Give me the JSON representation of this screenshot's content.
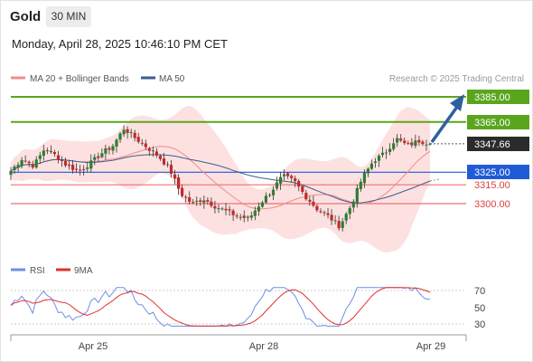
{
  "header": {
    "instrument": "Gold",
    "timeframe": "30 MIN"
  },
  "timestamp": "Monday, April 28, 2025 10:46:10 PM CET",
  "legend": {
    "ma20_bb": "MA 20 + Bollinger Bands",
    "ma50": "MA 50",
    "rsi": "RSI",
    "rsi_ma": "9MA"
  },
  "source": "Research © 2025 Trading Central",
  "colors": {
    "up": "#2e7d32",
    "down": "#c62828",
    "resistance": "#5aa51e",
    "support_blue": "#1f5bd6",
    "support_red": "#f07070",
    "ma50": "#3b5e8c",
    "band_fill": "#fde1e1",
    "current": "#2b2b2b",
    "rsi": "#6f8fe6",
    "rsi_ma": "#e03030"
  },
  "chart_data": [
    {
      "type": "candlestick",
      "title": "Gold",
      "x_labels": [
        "Apr 25",
        "Apr 28",
        "Apr 29"
      ],
      "levels": [
        {
          "value": 3385.0,
          "label": "3385.00",
          "kind": "resistance"
        },
        {
          "value": 3365.0,
          "label": "3365.00",
          "kind": "resistance"
        },
        {
          "value": 3347.66,
          "label": "3347.66",
          "kind": "current"
        },
        {
          "value": 3325.0,
          "label": "3325.00",
          "kind": "support"
        },
        {
          "value": 3315.0,
          "label": "3315.00",
          "kind": "support"
        },
        {
          "value": 3300.0,
          "label": "3300.00",
          "kind": "support"
        }
      ],
      "close_path": [
        3326,
        3336,
        3330,
        3344,
        3338,
        3330,
        3326,
        3332,
        3340,
        3346,
        3360,
        3352,
        3345,
        3338,
        3328,
        3308,
        3300,
        3304,
        3298,
        3294,
        3290,
        3288,
        3300,
        3310,
        3322,
        3318,
        3306,
        3296,
        3290,
        3282,
        3298,
        3320,
        3334,
        3340,
        3352,
        3346,
        3350,
        3348
      ]
    },
    {
      "type": "line",
      "title": "RSI",
      "series": [
        {
          "name": "RSI"
        },
        {
          "name": "9MA"
        }
      ],
      "y_ticks": [
        70,
        50,
        30
      ],
      "y_range": [
        20,
        80
      ]
    }
  ]
}
